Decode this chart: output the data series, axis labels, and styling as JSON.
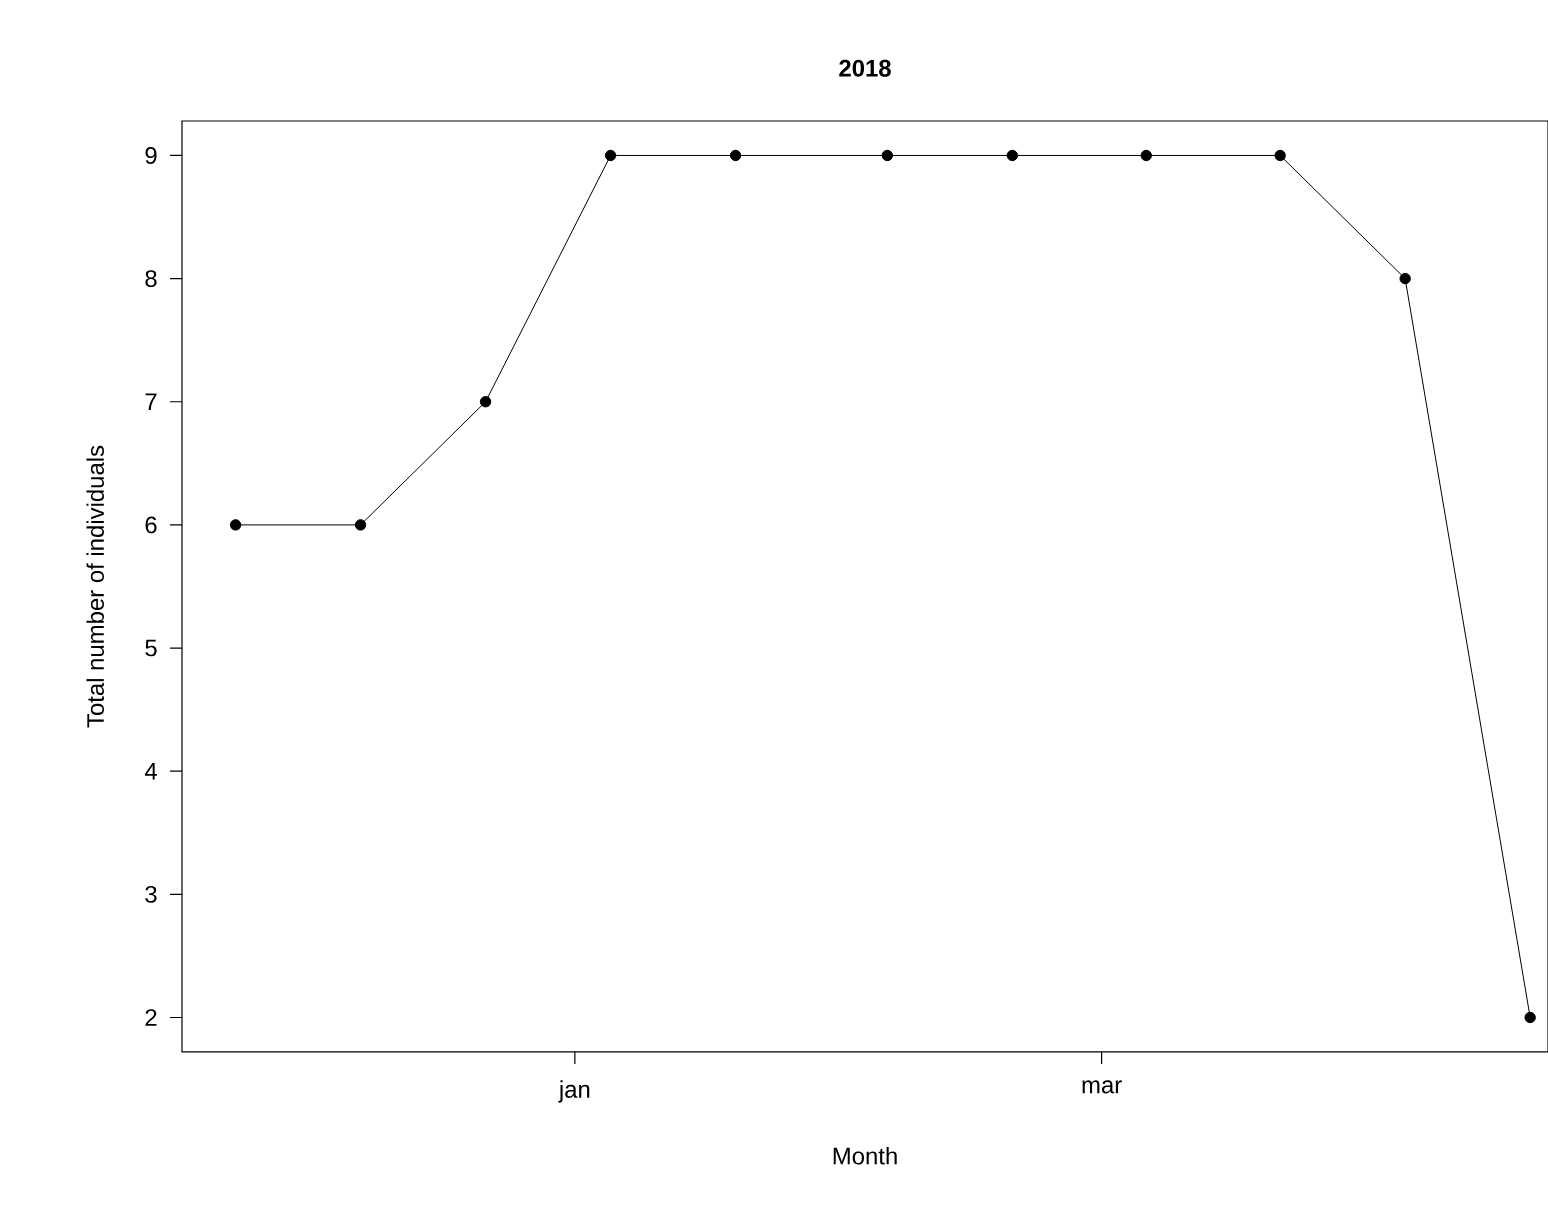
{
  "chart_data": {
    "type": "line",
    "title": "2018",
    "xlabel": "Month",
    "ylabel": "Total number of individuals",
    "x": [
      "2017-11-24",
      "2017-12-08",
      "2017-12-22",
      "2018-01-05",
      "2018-01-19",
      "2018-02-05",
      "2018-02-19",
      "2018-03-06",
      "2018-03-21",
      "2018-04-04",
      "2018-04-18"
    ],
    "values": [
      6,
      6,
      7,
      9,
      9,
      9,
      9,
      9,
      9,
      8,
      2
    ],
    "color": "#000000",
    "marker": "circle",
    "line_style": "solid",
    "grid": false,
    "xlim": [
      "2017-11-18",
      "2018-04-20"
    ],
    "xticks": [
      {
        "value": "2018-01-01",
        "label": "jan"
      },
      {
        "value": "2018-03-01",
        "label": "mar"
      }
    ],
    "ylim": [
      1.72,
      9.28
    ],
    "yticks": [
      2,
      3,
      4,
      5,
      6,
      7,
      8,
      9
    ]
  }
}
